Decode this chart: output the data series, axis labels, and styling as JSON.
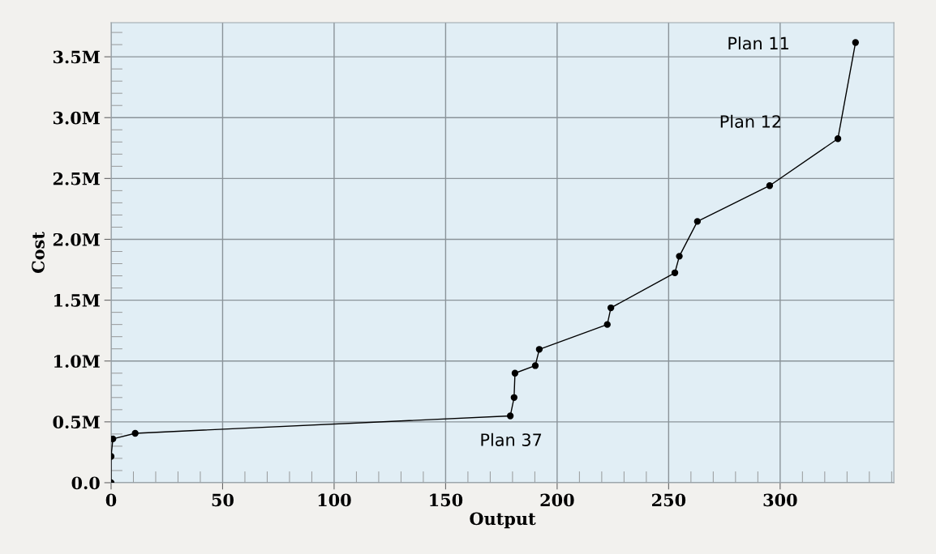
{
  "chart_data": {
    "type": "line",
    "xlabel": "Output",
    "ylabel": "Cost",
    "x": [
      0,
      0,
      0.8,
      10.8,
      179.0,
      180.7,
      181.1,
      190.2,
      192.0,
      222.5,
      224.1,
      252.8,
      254.8,
      262.9,
      295.3,
      325.9,
      333.8
    ],
    "series": [
      {
        "color": "#000000",
        "values": [
          0,
          216000,
          360000,
          406000,
          549000,
          700000,
          900000,
          962000,
          1096000,
          1300000,
          1437000,
          1725000,
          1861000,
          2147000,
          2441000,
          2827000,
          3617000
        ]
      }
    ],
    "marker": "circle",
    "line_style": "solid",
    "grid": true,
    "xlim": [
      0,
      351
    ],
    "xticks": [
      0,
      50,
      100,
      150,
      200,
      250,
      300
    ],
    "ylim": [
      0,
      3780000
    ],
    "yticks": [
      {
        "value": 0,
        "label": "0.0"
      },
      {
        "value": 500000,
        "label": "0.5M"
      },
      {
        "value": 1000000,
        "label": "1.0M"
      },
      {
        "value": 1500000,
        "label": "1.5M"
      },
      {
        "value": 2000000,
        "label": "2.0M"
      },
      {
        "value": 2500000,
        "label": "2.5M"
      },
      {
        "value": 3000000,
        "label": "3.0M"
      },
      {
        "value": 3500000,
        "label": "3.5M"
      }
    ],
    "annotations": [
      "Plan 11",
      "Plan 12",
      "Plan 37"
    ]
  }
}
